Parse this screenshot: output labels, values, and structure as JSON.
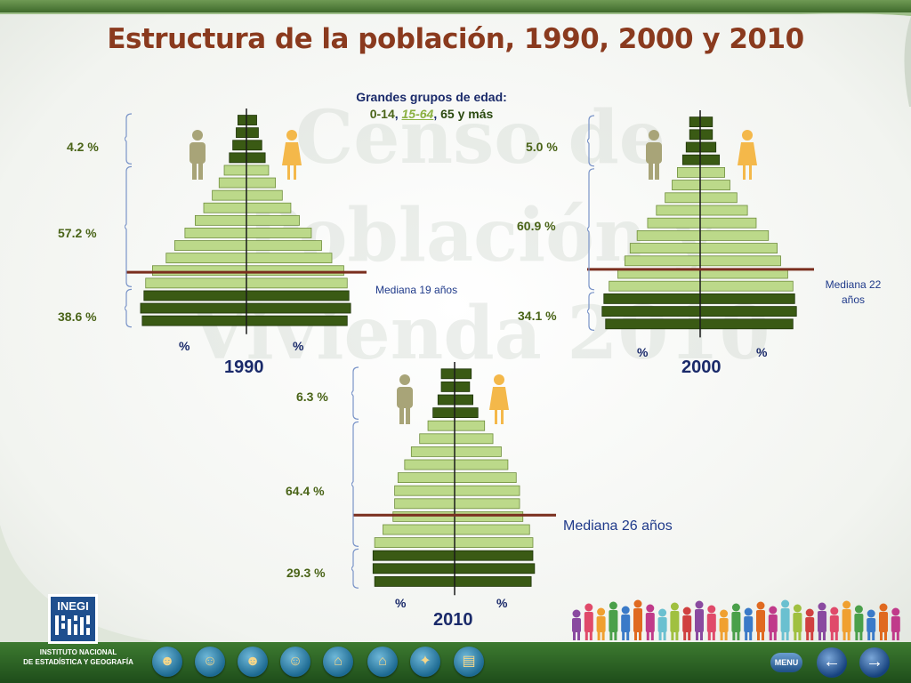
{
  "title": "Estructura de la población, 1990, 2000 y 2010",
  "groups_legend": {
    "heading": "Grandes grupos de edad:",
    "g1": "0-14",
    "sep1": ", ",
    "g2": "15-64",
    "sep2": ", ",
    "g3": "65 y más"
  },
  "logo": {
    "name": "INEGI",
    "line1": "INSTITUTO NACIONAL",
    "line2": "DE ESTADÍSTICA Y GEOGRAFÍA"
  },
  "watermark": "Censo de Población y Vivienda 2010",
  "nav": {
    "menu_label": "MENU",
    "buttons": [
      "population-icon",
      "people-icon",
      "family-icon",
      "couple-icon",
      "house-icon",
      "home-icon",
      "map-icon",
      "document-icon"
    ],
    "prev_icon": "arrow-left-icon",
    "next_icon": "arrow-right-icon"
  },
  "colors": {
    "title": "#8a3a1e",
    "bar_light": "#bcd98a",
    "bar_dark": "#3a5a14",
    "median_line": "#7a2e1e",
    "axis": "#1a1a1a",
    "male_icon": "#a8a478",
    "female_icon": "#f4b84a"
  },
  "chart_data": [
    {
      "type": "bar",
      "subtype": "population-pyramid",
      "year": "1990",
      "group_labels": {
        "old": "4.2 %",
        "working": "57.2 %",
        "young": "38.6 %"
      },
      "median_label": "Mediana 19 años",
      "median_age": 19,
      "x_unit": "%",
      "male": [
        6.1,
        6.2,
        6.0,
        5.9,
        5.5,
        4.7,
        4.2,
        3.6,
        3.0,
        2.5,
        2.0,
        1.6,
        1.3,
        1.0,
        0.8,
        0.6,
        0.5
      ],
      "female": [
        5.9,
        6.1,
        6.0,
        5.9,
        5.7,
        5.0,
        4.4,
        3.8,
        3.1,
        2.6,
        2.1,
        1.7,
        1.3,
        1.1,
        0.9,
        0.7,
        0.6
      ]
    },
    {
      "type": "bar",
      "subtype": "population-pyramid",
      "year": "2000",
      "group_labels": {
        "old": "5.0 %",
        "working": "60.9 %",
        "young": "34.1 %"
      },
      "median_label": "Mediana 22 años",
      "median_age": 22,
      "x_unit": "%",
      "male": [
        5.4,
        5.6,
        5.5,
        5.2,
        4.7,
        4.3,
        4.0,
        3.6,
        3.0,
        2.5,
        2.0,
        1.6,
        1.3,
        1.0,
        0.8,
        0.6,
        0.6
      ],
      "female": [
        5.3,
        5.5,
        5.4,
        5.3,
        5.0,
        4.6,
        4.4,
        3.9,
        3.2,
        2.7,
        2.1,
        1.7,
        1.4,
        1.1,
        0.9,
        0.7,
        0.7
      ]
    },
    {
      "type": "bar",
      "subtype": "population-pyramid",
      "year": "2010",
      "group_labels": {
        "old": "6.3 %",
        "working": "64.4 %",
        "young": "29.3 %"
      },
      "median_label": "Mediana 26 años",
      "median_age": 26,
      "x_unit": "%",
      "male": [
        4.8,
        4.9,
        4.9,
        4.8,
        4.3,
        3.7,
        3.6,
        3.6,
        3.4,
        3.0,
        2.6,
        2.1,
        1.6,
        1.3,
        1.0,
        0.8,
        0.8
      ],
      "female": [
        4.6,
        4.8,
        4.7,
        4.7,
        4.5,
        4.1,
        3.9,
        3.9,
        3.7,
        3.2,
        2.8,
        2.3,
        1.8,
        1.4,
        1.1,
        0.9,
        1.0
      ]
    }
  ]
}
